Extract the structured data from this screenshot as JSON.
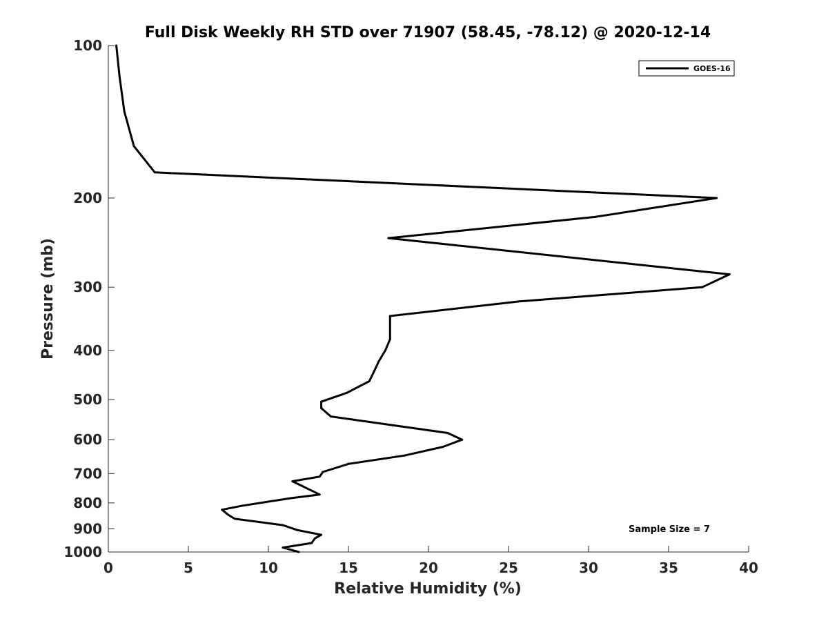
{
  "chart_data": {
    "type": "line",
    "title": "Full Disk Weekly RH STD over 71907 (58.45, -78.12) @ 2020-12-14",
    "xlabel": "Relative Humidity (%)",
    "ylabel": "Pressure (mb)",
    "xlim": [
      0,
      40
    ],
    "ylim": [
      100,
      1000
    ],
    "y_scale": "log",
    "y_reversed": true,
    "x_ticks": [
      0,
      5,
      10,
      15,
      20,
      25,
      30,
      35,
      40
    ],
    "y_ticks": [
      100,
      200,
      300,
      400,
      500,
      600,
      700,
      800,
      900,
      1000
    ],
    "grid": false,
    "legend_position": "top-right",
    "annotation": "Sample Size = 7",
    "series": [
      {
        "name": "GOES-16",
        "color": "#000000",
        "points": [
          [
            0.5,
            100
          ],
          [
            0.7,
            115
          ],
          [
            1.0,
            135
          ],
          [
            1.6,
            158
          ],
          [
            2.9,
            178
          ],
          [
            38.0,
            200
          ],
          [
            30.4,
            218
          ],
          [
            17.5,
            240
          ],
          [
            38.8,
            283
          ],
          [
            37.1,
            300
          ],
          [
            25.7,
            320
          ],
          [
            17.6,
            342
          ],
          [
            17.6,
            380
          ],
          [
            17.3,
            400
          ],
          [
            16.9,
            420
          ],
          [
            16.6,
            440
          ],
          [
            16.3,
            460
          ],
          [
            14.9,
            485
          ],
          [
            13.3,
            505
          ],
          [
            13.3,
            520
          ],
          [
            13.9,
            540
          ],
          [
            21.2,
            582
          ],
          [
            22.1,
            600
          ],
          [
            20.9,
            620
          ],
          [
            18.5,
            645
          ],
          [
            15.0,
            670
          ],
          [
            13.4,
            695
          ],
          [
            13.2,
            710
          ],
          [
            11.5,
            725
          ],
          [
            13.2,
            770
          ],
          [
            11.4,
            783
          ],
          [
            8.4,
            810
          ],
          [
            7.1,
            825
          ],
          [
            7.5,
            845
          ],
          [
            7.9,
            860
          ],
          [
            10.9,
            885
          ],
          [
            11.8,
            905
          ],
          [
            13.3,
            925
          ],
          [
            12.9,
            940
          ],
          [
            12.7,
            960
          ],
          [
            10.9,
            980
          ],
          [
            11.9,
            1000
          ]
        ]
      }
    ]
  }
}
